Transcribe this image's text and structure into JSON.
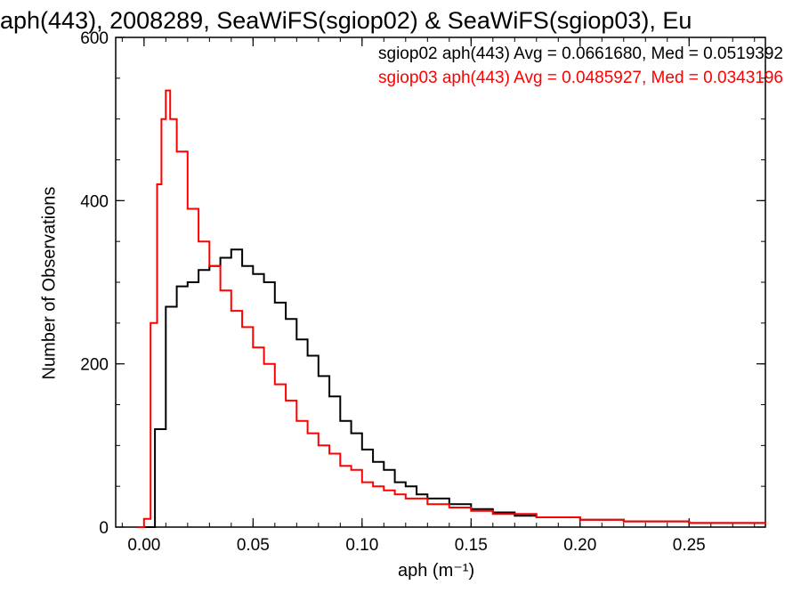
{
  "chart_data": {
    "type": "histogram",
    "title": "aph(443), 2008289, SeaWiFS(sgiop02) & SeaWiFS(sgiop03), Eu",
    "xlabel": "aph (m⁻¹)",
    "ylabel": "Number of Observations",
    "xlim": [
      -0.013,
      0.285
    ],
    "ylim": [
      0,
      600
    ],
    "xticks": [
      0.0,
      0.05,
      0.1,
      0.15,
      0.2,
      0.25
    ],
    "xtick_labels": [
      "0.00",
      "0.05",
      "0.10",
      "0.15",
      "0.20",
      "0.25"
    ],
    "yticks": [
      0,
      200,
      400,
      600
    ],
    "ytick_labels": [
      "0",
      "200",
      "400",
      "600"
    ],
    "series": [
      {
        "name": "sgiop02",
        "color": "#000000",
        "legend": "sgiop02 aph(443) Avg = 0.0661680, Med = 0.0519392",
        "x": [
          0.0,
          0.005,
          0.01,
          0.015,
          0.02,
          0.025,
          0.03,
          0.035,
          0.04,
          0.045,
          0.05,
          0.055,
          0.06,
          0.065,
          0.07,
          0.075,
          0.08,
          0.085,
          0.09,
          0.095,
          0.1,
          0.105,
          0.11,
          0.115,
          0.12,
          0.125,
          0.13,
          0.14,
          0.15,
          0.16,
          0.17,
          0.18,
          0.2,
          0.22,
          0.25,
          0.285
        ],
        "values": [
          0,
          120,
          270,
          295,
          300,
          315,
          320,
          330,
          340,
          320,
          310,
          300,
          275,
          255,
          230,
          210,
          185,
          160,
          130,
          115,
          95,
          80,
          70,
          55,
          50,
          40,
          35,
          28,
          22,
          18,
          14,
          12,
          9,
          7,
          5,
          3
        ]
      },
      {
        "name": "sgiop03",
        "color": "#ff0000",
        "legend": "sgiop03 aph(443) Avg = 0.0485927, Med = 0.0343196",
        "x": [
          -0.003,
          0.0,
          0.003,
          0.006,
          0.008,
          0.01,
          0.012,
          0.015,
          0.02,
          0.025,
          0.03,
          0.035,
          0.04,
          0.045,
          0.05,
          0.055,
          0.06,
          0.065,
          0.07,
          0.075,
          0.08,
          0.085,
          0.09,
          0.095,
          0.1,
          0.105,
          0.11,
          0.115,
          0.12,
          0.13,
          0.14,
          0.15,
          0.16,
          0.18,
          0.2,
          0.22,
          0.25,
          0.285
        ],
        "values": [
          0,
          10,
          250,
          420,
          500,
          535,
          500,
          460,
          390,
          350,
          320,
          290,
          265,
          245,
          220,
          200,
          175,
          155,
          130,
          115,
          100,
          90,
          75,
          70,
          55,
          50,
          45,
          40,
          35,
          28,
          24,
          20,
          16,
          12,
          9,
          7,
          5,
          3
        ]
      }
    ]
  }
}
